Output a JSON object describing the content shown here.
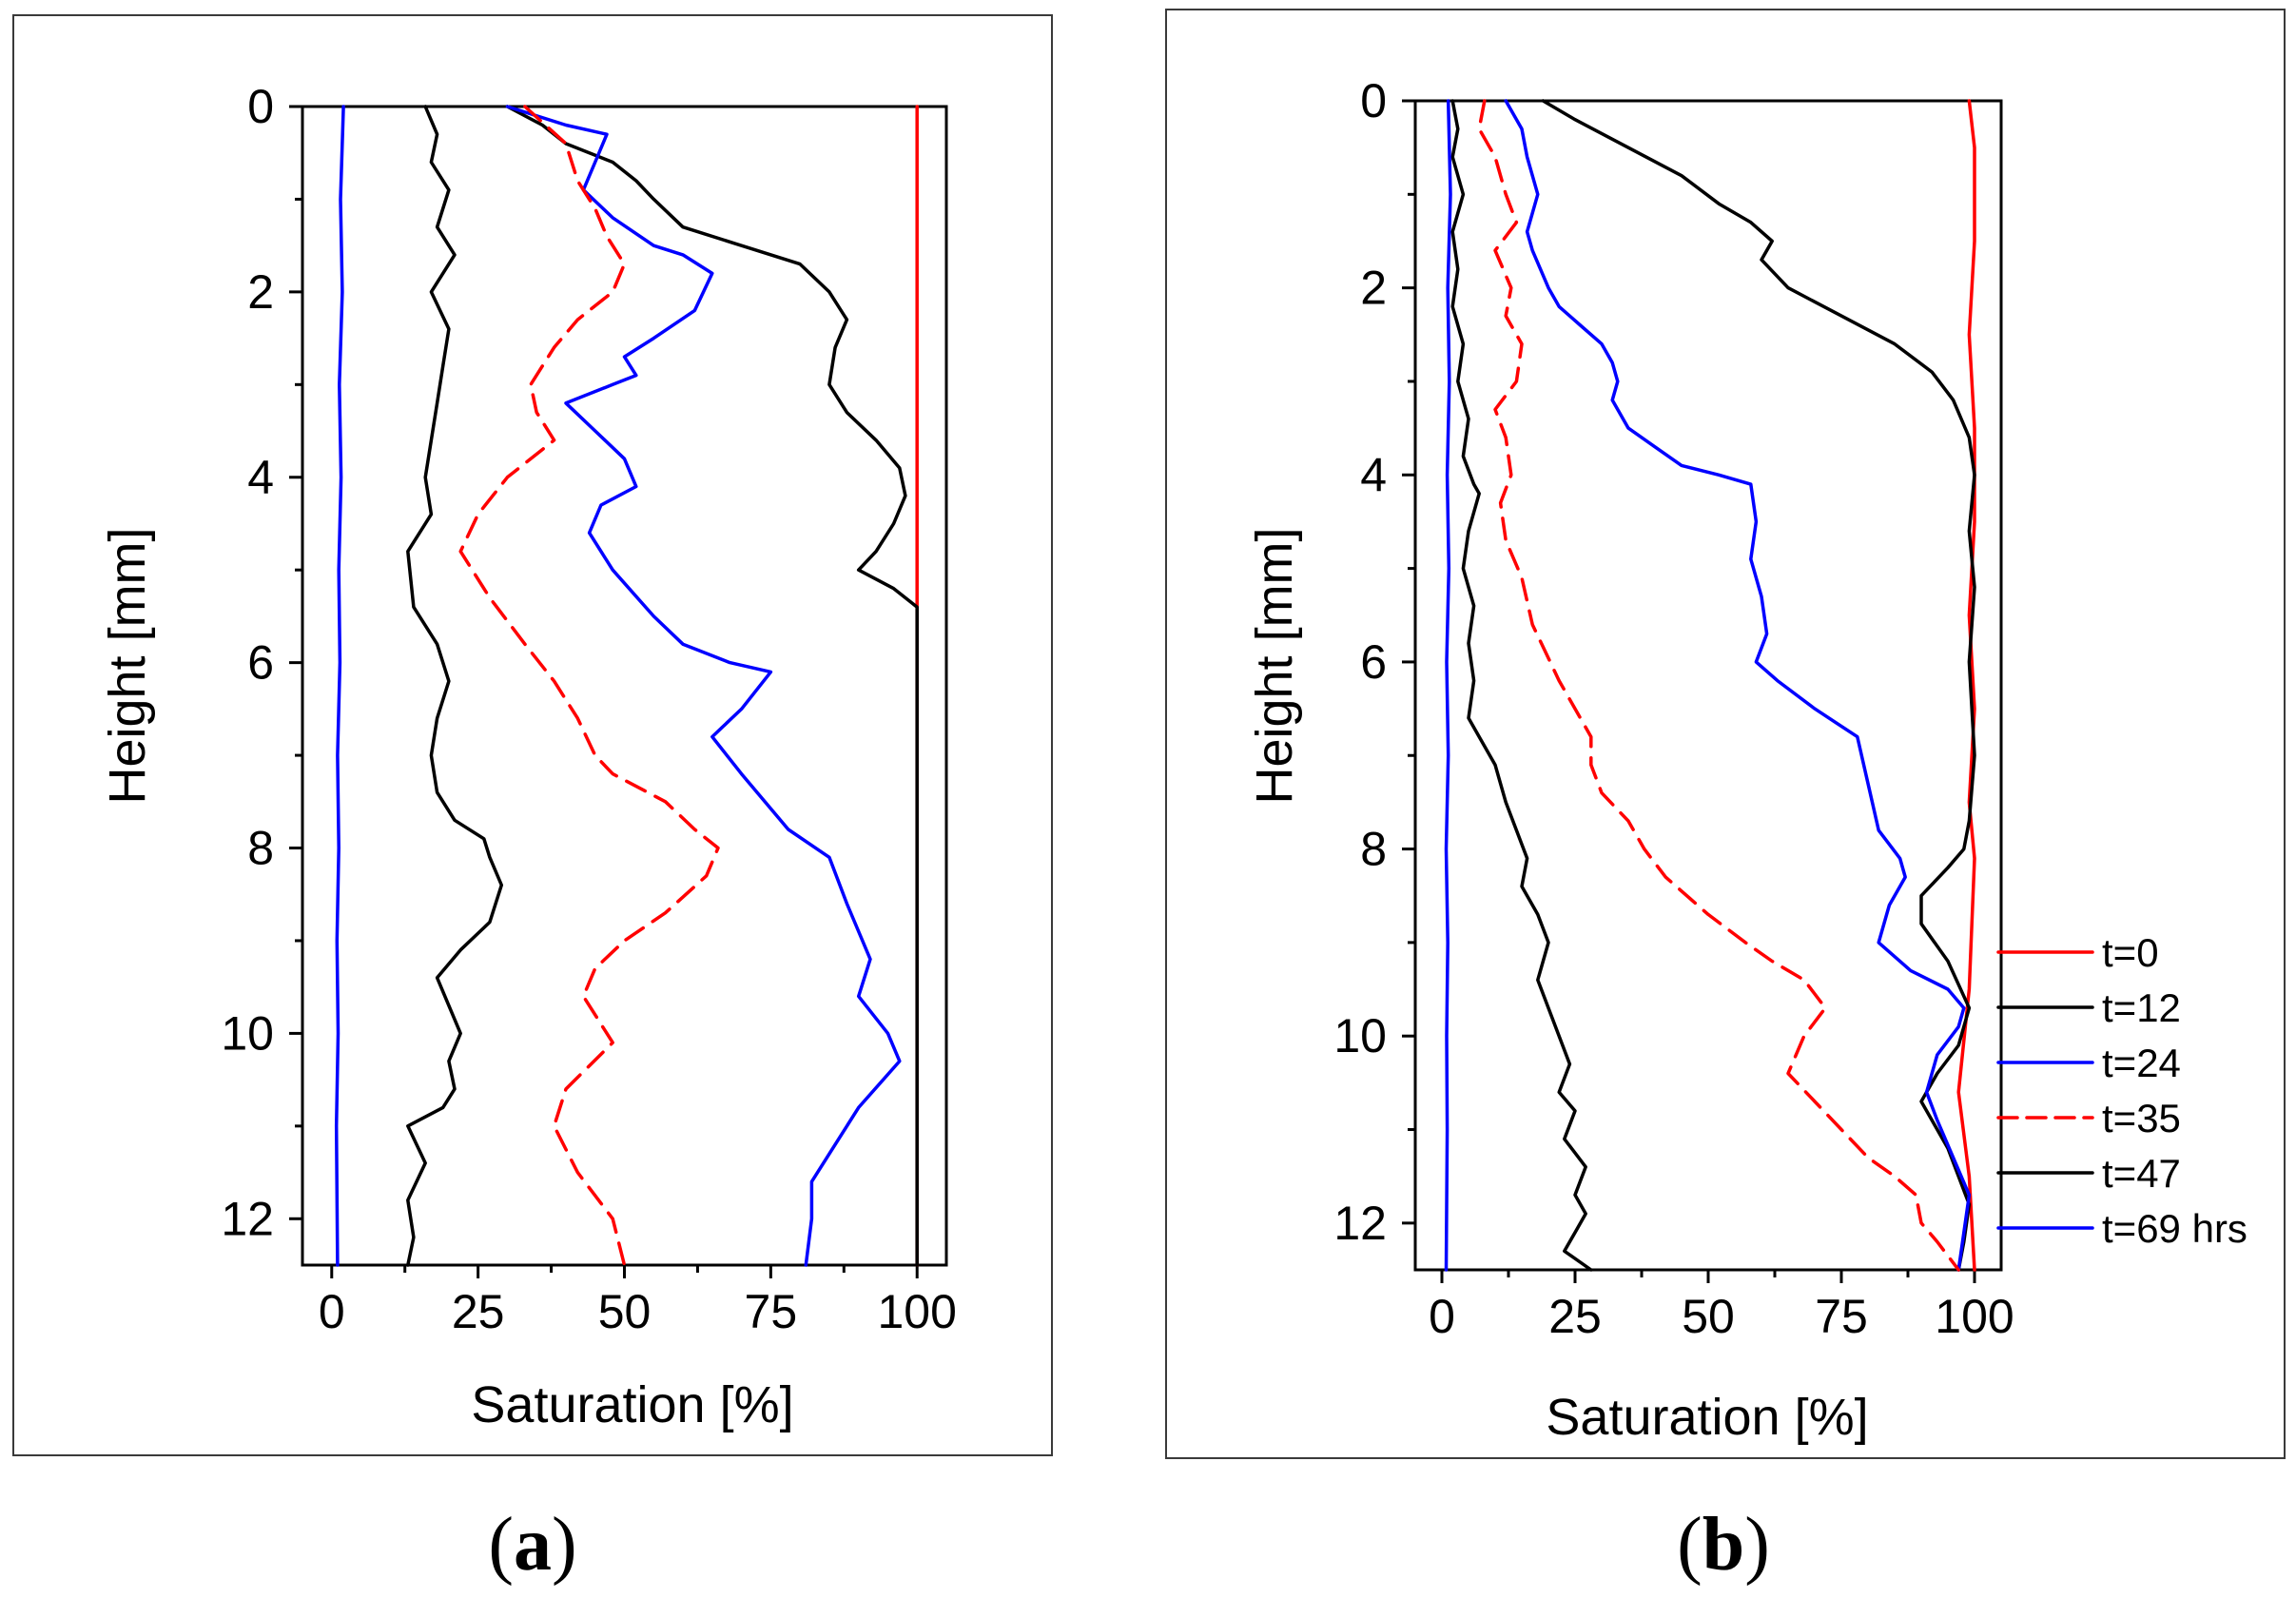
{
  "panels": [
    {
      "id": "a",
      "caption": "a",
      "xlabel": "Saturation [%]",
      "ylabel": "Height [mm]"
    },
    {
      "id": "b",
      "caption": "b",
      "xlabel": "Saturation [%]",
      "ylabel": "Height [mm]"
    }
  ],
  "legend": [
    {
      "label": "t=0",
      "color": "#ff0000",
      "dash": false
    },
    {
      "label": "t=12",
      "color": "#000000",
      "dash": false
    },
    {
      "label": "t=24",
      "color": "#0000ff",
      "dash": false
    },
    {
      "label": "t=35",
      "color": "#ff0000",
      "dash": true
    },
    {
      "label": "t=47",
      "color": "#000000",
      "dash": false
    },
    {
      "label": "t=69 hrs",
      "color": "#0000ff",
      "dash": false
    }
  ],
  "chart_data": [
    {
      "type": "line",
      "panel": "a",
      "xlabel": "Saturation [%]",
      "ylabel": "Height [mm]",
      "xlim": [
        -5,
        105
      ],
      "ylim": [
        0,
        12.5
      ],
      "y_inverted": true,
      "xticks": [
        0,
        25,
        50,
        75,
        100
      ],
      "yticks": [
        0,
        2,
        4,
        6,
        8,
        10,
        12
      ],
      "series": [
        {
          "name": "t=0",
          "color": "#ff0000",
          "dash": false,
          "x": [
            100,
            100,
            100,
            100,
            100,
            100,
            100,
            100,
            100,
            100,
            100,
            100,
            100,
            100,
            100
          ],
          "y": [
            0,
            1,
            2,
            3,
            4,
            4.4,
            4.8,
            5.4,
            6,
            7,
            7.8,
            8.1,
            9,
            11,
            12.5
          ]
        },
        {
          "name": "t=12",
          "color": "#000000",
          "dash": false,
          "x": [
            30,
            36,
            40,
            44,
            48,
            52,
            55,
            60,
            70,
            80,
            85,
            88,
            86,
            85,
            88,
            93,
            97,
            98,
            96,
            93,
            90,
            96,
            100,
            100,
            100,
            100,
            100,
            100,
            100
          ],
          "y": [
            0,
            0.2,
            0.4,
            0.5,
            0.6,
            0.8,
            1.0,
            1.3,
            1.5,
            1.7,
            2.0,
            2.3,
            2.6,
            3.0,
            3.3,
            3.6,
            3.9,
            4.2,
            4.5,
            4.8,
            5.0,
            5.2,
            5.4,
            6,
            7,
            8,
            9,
            11,
            12.5
          ]
        },
        {
          "name": "t=24",
          "color": "#0000ff",
          "dash": false,
          "x": [
            30,
            40,
            47,
            45,
            43,
            48,
            55,
            60,
            65,
            62,
            55,
            50,
            52,
            48,
            40,
            45,
            50,
            52,
            46,
            44,
            48,
            55,
            60,
            68,
            75,
            70,
            65,
            70,
            78,
            85,
            88,
            92,
            90,
            95,
            97,
            90,
            85,
            82,
            82,
            81
          ],
          "y": [
            0,
            0.2,
            0.3,
            0.6,
            0.9,
            1.2,
            1.5,
            1.6,
            1.8,
            2.2,
            2.5,
            2.7,
            2.9,
            3.0,
            3.2,
            3.5,
            3.8,
            4.1,
            4.3,
            4.6,
            5.0,
            5.5,
            5.8,
            6.0,
            6.1,
            6.5,
            6.8,
            7.2,
            7.8,
            8.1,
            8.6,
            9.2,
            9.6,
            10.0,
            10.3,
            10.8,
            11.3,
            11.6,
            12.0,
            12.5
          ]
        },
        {
          "name": "t=35",
          "color": "#ff0000",
          "dash": true,
          "x": [
            33,
            40,
            42,
            45,
            47,
            50,
            48,
            42,
            38,
            34,
            35,
            38,
            30,
            25,
            22,
            27,
            33,
            38,
            42,
            45,
            48,
            57,
            62,
            66,
            64,
            57,
            50,
            45,
            43,
            46,
            48,
            40,
            38,
            42,
            48,
            50
          ],
          "y": [
            0,
            0.4,
            0.8,
            1.1,
            1.4,
            1.7,
            2.0,
            2.3,
            2.6,
            3.0,
            3.3,
            3.6,
            4.0,
            4.4,
            4.8,
            5.3,
            5.8,
            6.2,
            6.6,
            7.0,
            7.2,
            7.5,
            7.8,
            8.0,
            8.3,
            8.7,
            9.0,
            9.3,
            9.6,
            9.9,
            10.1,
            10.6,
            11.0,
            11.5,
            12.0,
            12.5
          ]
        },
        {
          "name": "t=47",
          "color": "#000000",
          "dash": false,
          "x": [
            16,
            18,
            17,
            20,
            18,
            21,
            17,
            20,
            19,
            18,
            17,
            16,
            17,
            13,
            14,
            18,
            20,
            18,
            17,
            18,
            21,
            26,
            27,
            29,
            27,
            22,
            18,
            20,
            22,
            20,
            21,
            19,
            13,
            16,
            13,
            14,
            13
          ],
          "y": [
            0,
            0.3,
            0.6,
            0.9,
            1.3,
            1.6,
            2.0,
            2.4,
            2.8,
            3.2,
            3.6,
            4.0,
            4.4,
            4.8,
            5.4,
            5.8,
            6.2,
            6.6,
            7.0,
            7.4,
            7.7,
            7.9,
            8.1,
            8.4,
            8.8,
            9.1,
            9.4,
            9.7,
            10.0,
            10.3,
            10.6,
            10.8,
            11.0,
            11.4,
            11.8,
            12.2,
            12.5
          ]
        },
        {
          "name": "t=69 hrs",
          "color": "#0000ff",
          "dash": false,
          "x": [
            2,
            1.5,
            1.8,
            1.3,
            1.6,
            1.2,
            1.4,
            1.0,
            1.2,
            0.9,
            1.1,
            0.8,
            1.0
          ],
          "y": [
            0,
            1,
            2,
            3,
            4,
            5,
            6,
            7,
            8,
            9,
            10,
            11,
            12.5
          ]
        }
      ]
    },
    {
      "type": "line",
      "panel": "b",
      "xlabel": "Saturation [%]",
      "ylabel": "Height [mm]",
      "xlim": [
        -5,
        105
      ],
      "ylim": [
        0,
        12.5
      ],
      "y_inverted": true,
      "xticks": [
        0,
        25,
        50,
        75,
        100
      ],
      "yticks": [
        0,
        2,
        4,
        6,
        8,
        10,
        12
      ],
      "series": [
        {
          "name": "t=0",
          "color": "#ff0000",
          "dash": false,
          "x": [
            99,
            100,
            100,
            99,
            100,
            100,
            99,
            100,
            99,
            100,
            99,
            97,
            99,
            100
          ],
          "y": [
            0,
            0.5,
            1.5,
            2.5,
            3.5,
            4.5,
            5.5,
            6.5,
            7.5,
            8.1,
            9.5,
            10.6,
            11.5,
            12.5
          ]
        },
        {
          "name": "t=12",
          "color": "#000000",
          "dash": false,
          "x": [
            19,
            25,
            35,
            45,
            52,
            58,
            62,
            60,
            65,
            75,
            85,
            92,
            96,
            99,
            100,
            99,
            100,
            99,
            100,
            99,
            98,
            95,
            90,
            90,
            95,
            99,
            97,
            93,
            90,
            95,
            99,
            98,
            97
          ],
          "y": [
            0,
            0.2,
            0.5,
            0.8,
            1.1,
            1.3,
            1.5,
            1.7,
            2.0,
            2.3,
            2.6,
            2.9,
            3.2,
            3.6,
            4.0,
            4.6,
            5.2,
            6.0,
            7.0,
            7.7,
            8.0,
            8.2,
            8.5,
            8.8,
            9.2,
            9.7,
            10.1,
            10.4,
            10.7,
            11.2,
            11.8,
            12.2,
            12.5
          ]
        },
        {
          "name": "t=24",
          "color": "#0000ff",
          "dash": false,
          "x": [
            12,
            15,
            16,
            18,
            16,
            17,
            20,
            22,
            26,
            30,
            32,
            33,
            32,
            35,
            40,
            45,
            52,
            58,
            59,
            58,
            60,
            61,
            59,
            63,
            70,
            78,
            80,
            82,
            86,
            87,
            84,
            82,
            88,
            95,
            98,
            97,
            93,
            91,
            93,
            96,
            99,
            98,
            97
          ],
          "y": [
            0,
            0.3,
            0.6,
            1.0,
            1.4,
            1.6,
            2.0,
            2.2,
            2.4,
            2.6,
            2.8,
            3.0,
            3.2,
            3.5,
            3.7,
            3.9,
            4.0,
            4.1,
            4.5,
            4.9,
            5.3,
            5.7,
            6.0,
            6.2,
            6.5,
            6.8,
            7.3,
            7.8,
            8.1,
            8.3,
            8.6,
            9.0,
            9.3,
            9.5,
            9.7,
            9.9,
            10.2,
            10.6,
            10.9,
            11.3,
            11.7,
            12.1,
            12.5
          ]
        },
        {
          "name": "t=35",
          "color": "#ff0000",
          "dash": true,
          "x": [
            8,
            7,
            10,
            12,
            14,
            10,
            13,
            12,
            15,
            14,
            10,
            12,
            13,
            11,
            12,
            15,
            17,
            22,
            25,
            28,
            28,
            30,
            35,
            38,
            42,
            50,
            57,
            62,
            68,
            72,
            68,
            65,
            70,
            75,
            80,
            85,
            89,
            90,
            93,
            97
          ],
          "y": [
            0,
            0.3,
            0.6,
            1.0,
            1.3,
            1.6,
            2.0,
            2.3,
            2.6,
            3.0,
            3.3,
            3.6,
            4.0,
            4.3,
            4.7,
            5.1,
            5.6,
            6.2,
            6.5,
            6.8,
            7.1,
            7.4,
            7.7,
            8.0,
            8.3,
            8.7,
            9.0,
            9.2,
            9.4,
            9.7,
            10.0,
            10.4,
            10.7,
            11.0,
            11.3,
            11.5,
            11.7,
            12.0,
            12.2,
            12.5
          ]
        },
        {
          "name": "t=47",
          "color": "#000000",
          "dash": false,
          "x": [
            2,
            3,
            2,
            4,
            2,
            3,
            2,
            4,
            3,
            5,
            4,
            6,
            7,
            5,
            4,
            6,
            5,
            6,
            5,
            7,
            10,
            12,
            14,
            16,
            15,
            18,
            20,
            18,
            20,
            22,
            24,
            22,
            25,
            23,
            27,
            25,
            27,
            25,
            23,
            28
          ],
          "y": [
            0,
            0.3,
            0.6,
            1.0,
            1.4,
            1.8,
            2.2,
            2.6,
            3.0,
            3.4,
            3.8,
            4.1,
            4.2,
            4.6,
            5.0,
            5.4,
            5.8,
            6.2,
            6.6,
            6.8,
            7.1,
            7.5,
            7.8,
            8.1,
            8.4,
            8.7,
            9.0,
            9.4,
            9.7,
            10.0,
            10.3,
            10.6,
            10.8,
            11.1,
            11.4,
            11.7,
            11.9,
            12.1,
            12.3,
            12.5
          ]
        },
        {
          "name": "t=69 hrs",
          "color": "#0000ff",
          "dash": false,
          "x": [
            1.2,
            1.6,
            1.1,
            1.4,
            1.0,
            1.3,
            0.9,
            1.2,
            0.8,
            1.1,
            0.9,
            1.0,
            0.8
          ],
          "y": [
            0,
            1,
            2,
            3,
            4,
            5,
            6,
            7,
            8,
            9,
            10,
            11,
            12.5
          ]
        }
      ]
    }
  ]
}
